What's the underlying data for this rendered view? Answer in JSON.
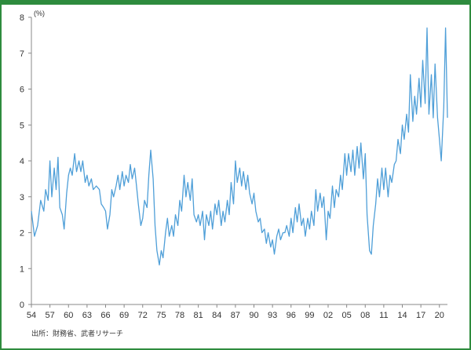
{
  "chart_data": {
    "type": "line",
    "ylabel": "(%)",
    "ylim": [
      0,
      8
    ],
    "yticks": [
      "0",
      "1",
      "2",
      "3",
      "4",
      "5",
      "6",
      "7",
      "8"
    ],
    "xlim": [
      1954,
      2021.3
    ],
    "xticks": [
      "54",
      "57",
      "60",
      "63",
      "66",
      "69",
      "72",
      "75",
      "78",
      "81",
      "84",
      "87",
      "90",
      "93",
      "96",
      "99",
      "02",
      "05",
      "08",
      "11",
      "14",
      "17",
      "20"
    ],
    "xtick_years": [
      1954,
      1957,
      1960,
      1963,
      1966,
      1969,
      1972,
      1975,
      1978,
      1981,
      1984,
      1987,
      1990,
      1993,
      1996,
      1999,
      2002,
      2005,
      2008,
      2011,
      2014,
      2017,
      2020
    ],
    "grid": false,
    "line_color": "#4f9fd8",
    "series": [
      {
        "name": "",
        "points": [
          [
            1954.0,
            2.6
          ],
          [
            1954.5,
            1.9
          ],
          [
            1955.0,
            2.2
          ],
          [
            1955.5,
            2.9
          ],
          [
            1956.0,
            2.6
          ],
          [
            1956.3,
            3.2
          ],
          [
            1956.7,
            2.9
          ],
          [
            1957.0,
            4.0
          ],
          [
            1957.3,
            3.0
          ],
          [
            1957.7,
            3.8
          ],
          [
            1958.0,
            3.2
          ],
          [
            1958.3,
            4.1
          ],
          [
            1958.6,
            2.7
          ],
          [
            1959.0,
            2.5
          ],
          [
            1959.3,
            2.1
          ],
          [
            1959.7,
            3.1
          ],
          [
            1960.0,
            3.6
          ],
          [
            1960.3,
            3.8
          ],
          [
            1960.6,
            3.6
          ],
          [
            1961.0,
            4.2
          ],
          [
            1961.3,
            3.7
          ],
          [
            1961.7,
            4.0
          ],
          [
            1962.0,
            3.7
          ],
          [
            1962.3,
            4.0
          ],
          [
            1962.7,
            3.4
          ],
          [
            1963.0,
            3.6
          ],
          [
            1963.3,
            3.3
          ],
          [
            1963.7,
            3.5
          ],
          [
            1964.0,
            3.2
          ],
          [
            1964.5,
            3.3
          ],
          [
            1965.0,
            3.2
          ],
          [
            1965.3,
            2.8
          ],
          [
            1965.7,
            2.7
          ],
          [
            1966.0,
            2.6
          ],
          [
            1966.3,
            2.1
          ],
          [
            1966.7,
            2.5
          ],
          [
            1967.0,
            3.2
          ],
          [
            1967.3,
            3.0
          ],
          [
            1967.7,
            3.3
          ],
          [
            1968.0,
            3.6
          ],
          [
            1968.3,
            3.2
          ],
          [
            1968.7,
            3.7
          ],
          [
            1969.0,
            3.3
          ],
          [
            1969.3,
            3.6
          ],
          [
            1969.7,
            3.4
          ],
          [
            1970.0,
            3.9
          ],
          [
            1970.3,
            3.5
          ],
          [
            1970.7,
            3.8
          ],
          [
            1971.0,
            3.3
          ],
          [
            1971.3,
            2.8
          ],
          [
            1971.7,
            2.2
          ],
          [
            1972.0,
            2.4
          ],
          [
            1972.3,
            2.9
          ],
          [
            1972.7,
            2.7
          ],
          [
            1973.0,
            3.6
          ],
          [
            1973.3,
            4.3
          ],
          [
            1973.7,
            3.5
          ],
          [
            1974.0,
            2.2
          ],
          [
            1974.3,
            1.5
          ],
          [
            1974.7,
            1.1
          ],
          [
            1975.0,
            1.5
          ],
          [
            1975.3,
            1.3
          ],
          [
            1975.7,
            2.0
          ],
          [
            1976.0,
            2.4
          ],
          [
            1976.3,
            1.9
          ],
          [
            1976.7,
            2.2
          ],
          [
            1977.0,
            1.9
          ],
          [
            1977.3,
            2.5
          ],
          [
            1977.7,
            2.2
          ],
          [
            1978.0,
            2.9
          ],
          [
            1978.3,
            2.6
          ],
          [
            1978.7,
            3.6
          ],
          [
            1979.0,
            3.0
          ],
          [
            1979.3,
            3.4
          ],
          [
            1979.7,
            2.9
          ],
          [
            1980.0,
            3.5
          ],
          [
            1980.3,
            2.5
          ],
          [
            1980.7,
            2.3
          ],
          [
            1981.0,
            2.5
          ],
          [
            1981.3,
            2.2
          ],
          [
            1981.7,
            2.6
          ],
          [
            1982.0,
            1.8
          ],
          [
            1982.3,
            2.5
          ],
          [
            1982.7,
            2.2
          ],
          [
            1983.0,
            2.6
          ],
          [
            1983.3,
            2.1
          ],
          [
            1983.7,
            2.8
          ],
          [
            1984.0,
            2.5
          ],
          [
            1984.3,
            2.9
          ],
          [
            1984.7,
            2.2
          ],
          [
            1985.0,
            2.6
          ],
          [
            1985.3,
            2.3
          ],
          [
            1985.7,
            2.9
          ],
          [
            1986.0,
            2.5
          ],
          [
            1986.3,
            3.4
          ],
          [
            1986.7,
            2.8
          ],
          [
            1987.0,
            4.0
          ],
          [
            1987.3,
            3.4
          ],
          [
            1987.7,
            3.8
          ],
          [
            1988.0,
            3.3
          ],
          [
            1988.3,
            3.7
          ],
          [
            1988.7,
            3.2
          ],
          [
            1989.0,
            3.6
          ],
          [
            1989.3,
            3.1
          ],
          [
            1989.7,
            2.8
          ],
          [
            1990.0,
            3.1
          ],
          [
            1990.3,
            2.6
          ],
          [
            1990.7,
            2.3
          ],
          [
            1991.0,
            2.4
          ],
          [
            1991.3,
            2.0
          ],
          [
            1991.7,
            2.1
          ],
          [
            1992.0,
            1.7
          ],
          [
            1992.3,
            2.0
          ],
          [
            1992.7,
            1.6
          ],
          [
            1993.0,
            1.8
          ],
          [
            1993.3,
            1.4
          ],
          [
            1993.7,
            1.9
          ],
          [
            1994.0,
            2.1
          ],
          [
            1994.3,
            1.8
          ],
          [
            1994.7,
            2.0
          ],
          [
            1995.0,
            2.0
          ],
          [
            1995.3,
            2.2
          ],
          [
            1995.7,
            1.9
          ],
          [
            1996.0,
            2.4
          ],
          [
            1996.3,
            2.0
          ],
          [
            1996.7,
            2.7
          ],
          [
            1997.0,
            2.3
          ],
          [
            1997.3,
            2.8
          ],
          [
            1997.7,
            2.2
          ],
          [
            1998.0,
            2.4
          ],
          [
            1998.3,
            1.9
          ],
          [
            1998.7,
            2.4
          ],
          [
            1999.0,
            2.1
          ],
          [
            1999.3,
            2.6
          ],
          [
            1999.7,
            2.2
          ],
          [
            2000.0,
            3.2
          ],
          [
            2000.3,
            2.6
          ],
          [
            2000.7,
            3.1
          ],
          [
            2001.0,
            2.7
          ],
          [
            2001.3,
            3.0
          ],
          [
            2001.7,
            1.8
          ],
          [
            2002.0,
            2.6
          ],
          [
            2002.3,
            2.4
          ],
          [
            2002.7,
            3.3
          ],
          [
            2003.0,
            2.7
          ],
          [
            2003.3,
            3.2
          ],
          [
            2003.7,
            3.0
          ],
          [
            2004.0,
            3.6
          ],
          [
            2004.3,
            3.2
          ],
          [
            2004.7,
            4.2
          ],
          [
            2005.0,
            3.6
          ],
          [
            2005.3,
            4.2
          ],
          [
            2005.7,
            3.7
          ],
          [
            2006.0,
            4.3
          ],
          [
            2006.3,
            3.6
          ],
          [
            2006.7,
            4.4
          ],
          [
            2007.0,
            3.8
          ],
          [
            2007.3,
            4.5
          ],
          [
            2007.7,
            3.5
          ],
          [
            2008.0,
            4.2
          ],
          [
            2008.3,
            2.5
          ],
          [
            2008.7,
            1.5
          ],
          [
            2009.0,
            1.4
          ],
          [
            2009.3,
            2.2
          ],
          [
            2009.7,
            2.8
          ],
          [
            2010.0,
            3.5
          ],
          [
            2010.3,
            3.0
          ],
          [
            2010.7,
            3.8
          ],
          [
            2011.0,
            3.2
          ],
          [
            2011.3,
            3.8
          ],
          [
            2011.7,
            3.0
          ],
          [
            2012.0,
            3.6
          ],
          [
            2012.3,
            3.4
          ],
          [
            2012.7,
            3.9
          ],
          [
            2013.0,
            4.0
          ],
          [
            2013.3,
            4.6
          ],
          [
            2013.7,
            4.2
          ],
          [
            2014.0,
            5.0
          ],
          [
            2014.3,
            4.6
          ],
          [
            2014.7,
            5.3
          ],
          [
            2015.0,
            4.8
          ],
          [
            2015.3,
            6.4
          ],
          [
            2015.7,
            5.1
          ],
          [
            2016.0,
            5.8
          ],
          [
            2016.3,
            5.3
          ],
          [
            2016.7,
            6.3
          ],
          [
            2017.0,
            5.5
          ],
          [
            2017.3,
            6.8
          ],
          [
            2017.7,
            5.6
          ],
          [
            2018.0,
            7.7
          ],
          [
            2018.3,
            5.3
          ],
          [
            2018.7,
            6.4
          ],
          [
            2019.0,
            5.2
          ],
          [
            2019.3,
            6.7
          ],
          [
            2019.7,
            5.2
          ],
          [
            2020.0,
            4.6
          ],
          [
            2020.3,
            4.0
          ],
          [
            2020.7,
            5.5
          ],
          [
            2021.0,
            7.7
          ],
          [
            2021.3,
            5.2
          ]
        ]
      }
    ]
  },
  "source": "出所：財務省、武者リサーチ"
}
